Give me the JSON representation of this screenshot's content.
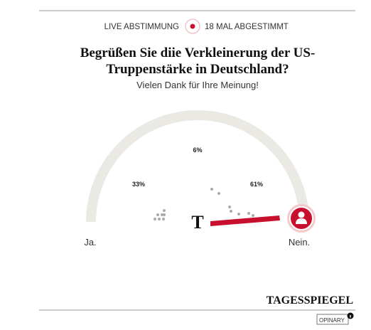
{
  "header": {
    "live": "LIVE ABSTIMMUNG",
    "votes": "18 MAL ABGESTIMMT"
  },
  "question": {
    "line1": "Begrüßen Sie diie Verkleinerung der US-",
    "line2": "Truppenstärke in Deutschland?"
  },
  "subtitle": "Vielen Dank für Ihre Meinung!",
  "results": {
    "left": "33%",
    "middle": "6%",
    "right": "61%"
  },
  "scale": {
    "left": "Ja.",
    "right": "Nein."
  },
  "logo": "T",
  "brand": "TAGESSPIEGEL",
  "footer": "OPINARY"
}
